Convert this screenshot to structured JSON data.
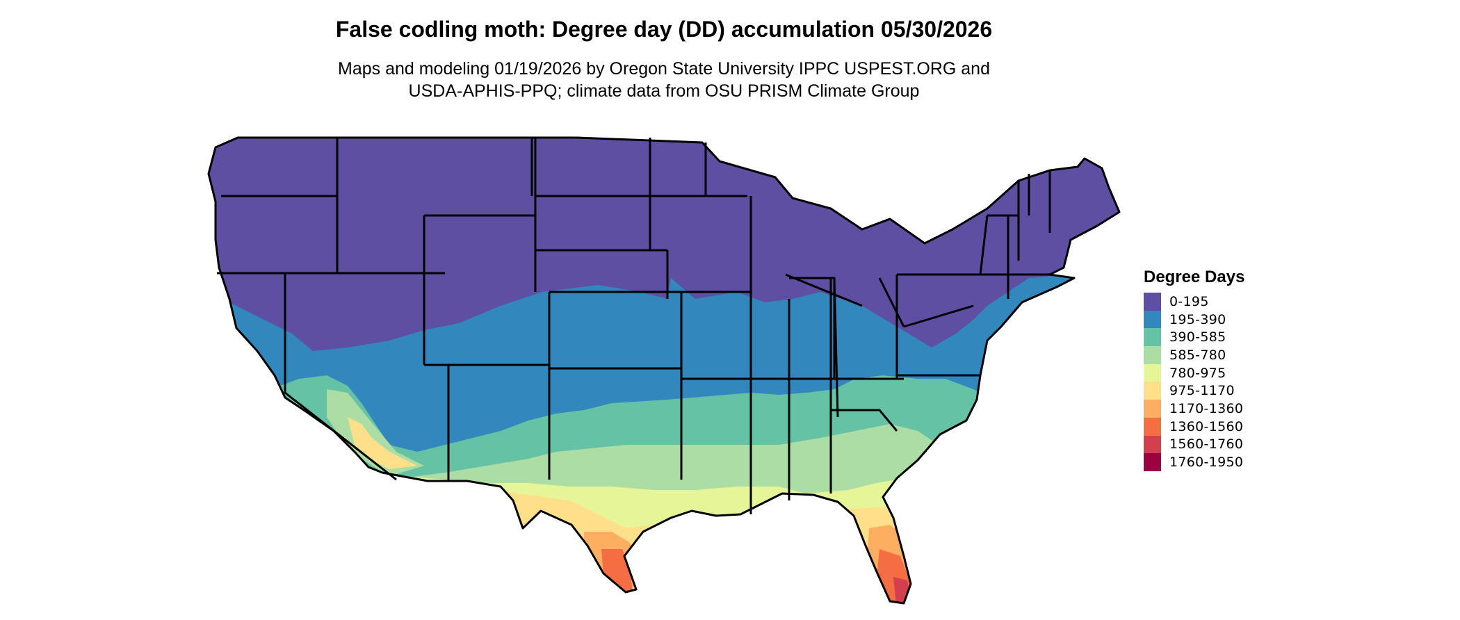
{
  "title": "False codling moth: Degree day (DD) accumulation 05/30/2026",
  "subtitle_line1": "Maps and modeling 01/19/2026 by Oregon State University IPPC USPEST.ORG and",
  "subtitle_line2": "USDA-APHIS-PPQ; climate data from OSU PRISM Climate Group",
  "legend": {
    "title": "Degree Days",
    "items": [
      {
        "label": "0-195",
        "color": "#5e4fa2"
      },
      {
        "label": "195-390",
        "color": "#3288bd"
      },
      {
        "label": "390-585",
        "color": "#66c2a5"
      },
      {
        "label": "585-780",
        "color": "#abdda4"
      },
      {
        "label": "780-975",
        "color": "#e6f598"
      },
      {
        "label": "975-1170",
        "color": "#fee08b"
      },
      {
        "label": "1170-1360",
        "color": "#fdae61"
      },
      {
        "label": "1360-1560",
        "color": "#f46d43"
      },
      {
        "label": "1560-1760",
        "color": "#d53e4f"
      },
      {
        "label": "1760-1950",
        "color": "#9e0142"
      }
    ]
  }
}
